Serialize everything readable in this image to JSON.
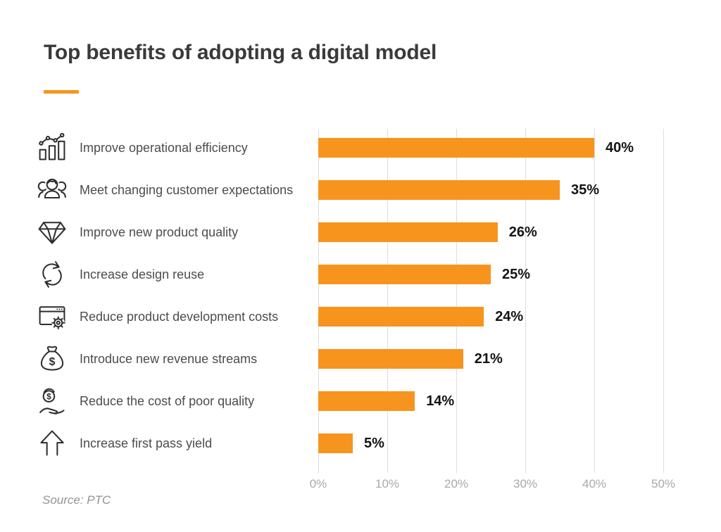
{
  "page": {
    "title": "Top benefits of adopting a digital model",
    "source": "Source: PTC"
  },
  "colors": {
    "bar_orange": "#F7941E",
    "accent_orange": "#F7941E",
    "title_text": "#3a3a3a",
    "category_text": "#4c4c4c",
    "value_text": "#141414",
    "axis_text": "#a9a9a9",
    "gridline": "#dedede",
    "icon_stroke": "#2d2d2d",
    "background": "#ffffff"
  },
  "chart_data": {
    "type": "bar",
    "orientation": "horizontal",
    "title": "Top benefits of adopting a digital model",
    "categories": [
      "Improve operational efficiency",
      "Meet changing customer expectations",
      "Improve new product quality",
      "Increase design reuse",
      "Reduce product development costs",
      "Introduce new revenue streams",
      "Reduce the cost of poor quality",
      "Increase first pass yield"
    ],
    "values": [
      40,
      35,
      26,
      25,
      24,
      21,
      14,
      5
    ],
    "value_labels": [
      "40%",
      "35%",
      "26%",
      "25%",
      "24%",
      "21%",
      "14%",
      "5%"
    ],
    "icons": [
      "growth-chart-icon",
      "customers-icon",
      "diamond-icon",
      "reuse-icon",
      "browser-gear-icon",
      "money-bag-icon",
      "coin-hand-icon",
      "arrow-up-icon"
    ],
    "x_axis": {
      "min": 0,
      "max": 50,
      "tick_labels": [
        "0%",
        "10%",
        "20%",
        "30%",
        "40%",
        "50%"
      ],
      "grid": true
    },
    "legend": null,
    "source": "Source: PTC"
  }
}
